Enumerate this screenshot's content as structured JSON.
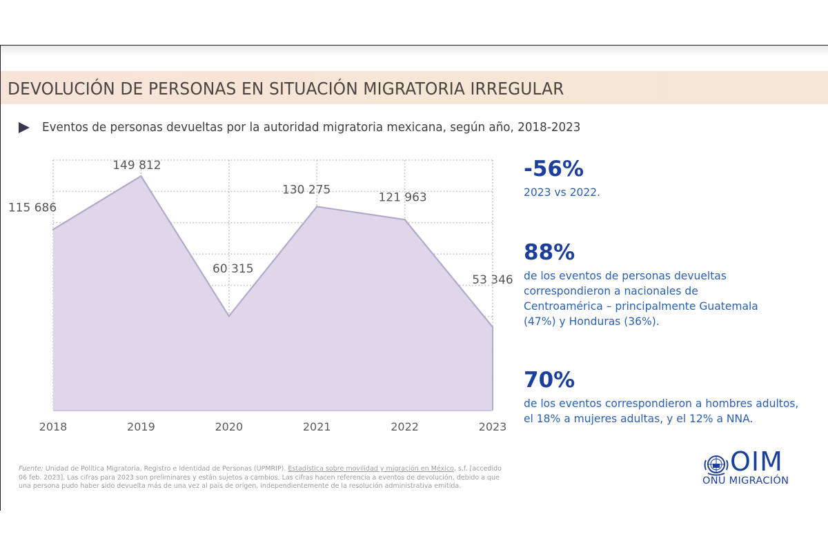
{
  "header": {
    "title": "DEVOLUCIÓN DE PERSONAS EN SITUACIÓN MIGRATORIA IRREGULAR",
    "subtitle": "Eventos de personas devueltas por la autoridad migratoria mexicana, según año, 2018-2023",
    "bullet_icon": "triangle-right-icon"
  },
  "chart_data": {
    "type": "area",
    "title": "Eventos de personas devueltas por la autoridad migratoria mexicana, según año, 2018-2023",
    "x": [
      "2018",
      "2019",
      "2020",
      "2021",
      "2022",
      "2023"
    ],
    "values": [
      115686,
      149812,
      60315,
      130275,
      121963,
      53346
    ],
    "data_labels": [
      "115 686",
      "149 812",
      "60 315",
      "130 275",
      "121 963",
      "53 346"
    ],
    "xlabel": "",
    "ylabel": "",
    "ylim": [
      0,
      160000
    ],
    "y_grid_step": 20000,
    "grid": true,
    "grid_style": "dotted",
    "y_tick_labels_visible": false,
    "fill_color": "#dcd6e8",
    "line_color": "#b3a8c9",
    "legend": "none"
  },
  "kpis": [
    {
      "value": "-56%",
      "description": "2023 vs 2022."
    },
    {
      "value": "88%",
      "description": "de los eventos de personas devueltas correspondieron a nacionales de Centroamérica – principalmente Guatemala (47%) y Honduras (36%)."
    },
    {
      "value": "70%",
      "description": "de los eventos correspondieron a hombres adultos, el 18% a mujeres adultas, y el 12% a NNA."
    }
  ],
  "footnote": {
    "source_label": "Fuente:",
    "source_text": " Unidad de Política Migratoria, Registro e Identidad de Personas (UPMRIP). ",
    "link_text": "Estadística sobre movilidad y migración en México",
    "rest_text": ", s.f. [accedido 06 feb. 2023]. Las cifras para 2023 son preliminares y están sujetos a cambios. Las cifras hacen referencia a eventos de devolución, debido a que una persona pudo haber sido devuelta más de una vez al país de origen, independientemente de la resolución administrativa emitida."
  },
  "logo": {
    "acronym": "OIM",
    "tagline": "ONU MIGRACIÓN",
    "icon": "un-emblem-icon"
  },
  "colors": {
    "brand_blue": "#1b3f9a",
    "kpi_text_blue": "#2a5fb0",
    "title_band": "#f5e4d6",
    "area_fill": "#dcd6e8"
  }
}
